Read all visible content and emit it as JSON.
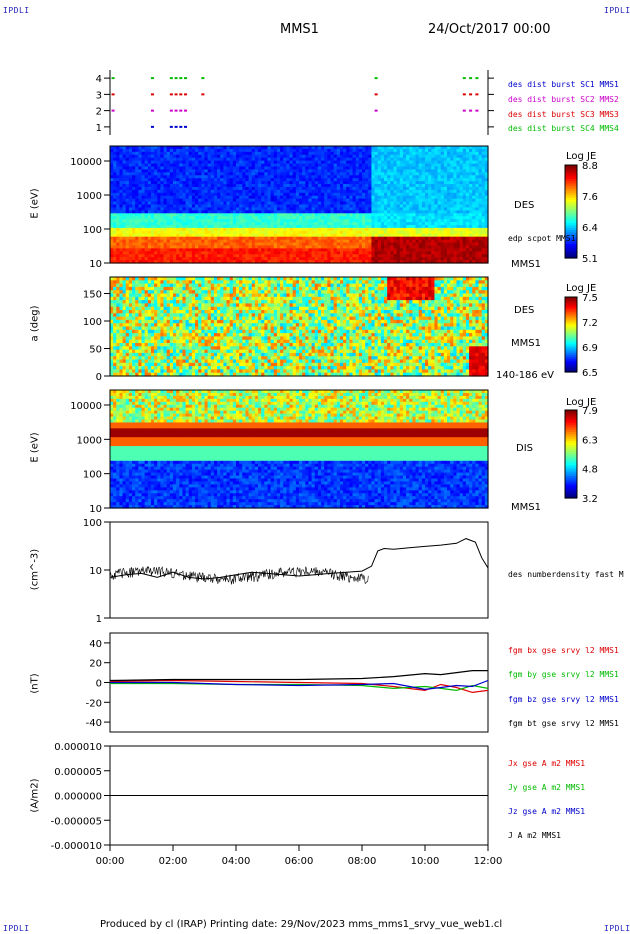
{
  "page": {
    "corner_label": "IPDLI",
    "spacecraft": "MMS1",
    "date": "24/Oct/2017 00:00",
    "footer": "Produced by cl (IRAP)   Printing date: 29/Nov/2023   mms_mms1_srvy_vue_web1.cl"
  },
  "chart_data": [
    {
      "type": "scatter",
      "panel": "burst",
      "yticks": [
        "4",
        "3",
        "2",
        "1"
      ],
      "xlim": [
        0,
        12
      ],
      "ylim": [
        0.5,
        4.5
      ],
      "series": [
        {
          "name": "des dist burst SC1 MMS1",
          "color": "#0000cc",
          "y": 1,
          "x": [
            1.3,
            1.9,
            2.05,
            2.2,
            2.35
          ]
        },
        {
          "name": "des dist burst SC2 MMS2",
          "color": "#cc00cc",
          "y": 2,
          "x": [
            0.05,
            1.3,
            1.9,
            2.05,
            2.2,
            2.35,
            8.4,
            11.2,
            11.4,
            11.6
          ]
        },
        {
          "name": "des dist burst SC3 MMS3",
          "color": "#dd0000",
          "y": 3,
          "x": [
            0.05,
            1.3,
            1.9,
            2.05,
            2.2,
            2.35,
            2.9,
            8.4,
            11.2,
            11.4,
            11.6
          ]
        },
        {
          "name": "des dist burst SC4 MMS4",
          "color": "#00bb00",
          "y": 4,
          "x": [
            0.05,
            1.3,
            1.9,
            2.05,
            2.2,
            2.35,
            2.9,
            8.4,
            11.2,
            11.4,
            11.6
          ]
        }
      ]
    },
    {
      "type": "heatmap",
      "panel": "des-energy",
      "ylabel": "E (eV)",
      "yscale": "log",
      "yticks": [
        "10000",
        "1000",
        "100",
        "10"
      ],
      "right_labels": [
        "DES",
        "edp scpot MMS1",
        "MMS1"
      ],
      "colorbar": {
        "title": "Log JE",
        "ticks": [
          "8.8",
          "7.6",
          "6.4",
          "5.1"
        ],
        "range": [
          5.1,
          8.8
        ]
      }
    },
    {
      "type": "heatmap",
      "panel": "des-pitch",
      "ylabel": "a (deg)",
      "yticks": [
        "150",
        "100",
        "50",
        "0"
      ],
      "ylim": [
        0,
        180
      ],
      "right_labels": [
        "DES",
        "MMS1",
        "140-186 eV"
      ],
      "colorbar": {
        "title": "Log JE",
        "ticks": [
          "7.5",
          "7.2",
          "6.9",
          "6.5"
        ],
        "range": [
          6.5,
          7.5
        ]
      }
    },
    {
      "type": "heatmap",
      "panel": "dis-energy",
      "ylabel": "E (eV)",
      "yscale": "log",
      "yticks": [
        "10000",
        "1000",
        "100",
        "10"
      ],
      "right_labels": [
        "DIS",
        "MMS1"
      ],
      "colorbar": {
        "title": "Log JE",
        "ticks": [
          "7.9",
          "6.3",
          "4.8",
          "3.2"
        ],
        "range": [
          3.2,
          7.9
        ]
      }
    },
    {
      "type": "line",
      "panel": "density",
      "ylabel": "(cm^-3)",
      "yscale": "log",
      "yticks": [
        "100",
        "10",
        "1"
      ],
      "ylim": [
        1,
        100
      ],
      "series": [
        {
          "name": "des numberdensity fast M",
          "color": "#000000",
          "x": [
            0,
            0.5,
            1,
            1.5,
            2,
            2.5,
            3,
            3.5,
            4,
            4.5,
            5,
            5.5,
            6,
            6.5,
            7,
            7.5,
            8,
            8.3,
            8.5,
            8.7,
            9,
            9.5,
            10,
            10.5,
            11,
            11.3,
            11.6,
            11.8,
            12
          ],
          "y": [
            7,
            8,
            8.5,
            7,
            9,
            7,
            6.5,
            7,
            8,
            9,
            8.5,
            8,
            7.5,
            8,
            8.5,
            9,
            9.5,
            12,
            25,
            28,
            27,
            29,
            31,
            33,
            36,
            45,
            38,
            18,
            11
          ]
        }
      ]
    },
    {
      "type": "line",
      "panel": "fgm",
      "ylabel": "(nT)",
      "yticks": [
        "40",
        "20",
        "0",
        "-20",
        "-40"
      ],
      "ylim": [
        -50,
        50
      ],
      "series": [
        {
          "name": "fgm bx gse srvy l2 MMS1",
          "color": "#dd0000",
          "x": [
            0,
            2,
            4,
            6,
            8,
            9,
            10,
            10.5,
            11,
            11.5,
            12
          ],
          "y": [
            1,
            2,
            1,
            0,
            -1,
            -4,
            -8,
            -2,
            -5,
            -10,
            -8
          ]
        },
        {
          "name": "fgm by gse srvy l2 MMS1",
          "color": "#00bb00",
          "x": [
            0,
            2,
            4,
            6,
            8,
            9,
            10,
            10.5,
            11,
            11.5,
            12
          ],
          "y": [
            -1,
            -1,
            -2,
            -2,
            -3,
            -6,
            -4,
            -6,
            -8,
            -3,
            -6
          ]
        },
        {
          "name": "fgm bz gse srvy l2 MMS1",
          "color": "#0000cc",
          "x": [
            0,
            2,
            4,
            6,
            8,
            9,
            10,
            10.5,
            11,
            11.5,
            12
          ],
          "y": [
            0,
            0,
            -2,
            -3,
            -2,
            -1,
            -7,
            -5,
            -3,
            -4,
            2
          ]
        },
        {
          "name": "fgm bt gse srvy l2 MMS1",
          "color": "#000000",
          "x": [
            0,
            2,
            4,
            6,
            8,
            9,
            10,
            10.5,
            11,
            11.5,
            12
          ],
          "y": [
            2,
            3,
            3,
            3,
            4,
            6,
            9,
            8,
            10,
            12,
            12
          ]
        }
      ]
    },
    {
      "type": "line",
      "panel": "current",
      "ylabel": "(A/m2)",
      "yticks": [
        "0.000010",
        "0.000005",
        "0.000000",
        "-0.000005",
        "-0.000010"
      ],
      "ylim": [
        -1e-05,
        1e-05
      ],
      "series": [
        {
          "name": "Jx gse A m2 MMS1",
          "color": "#dd0000",
          "x": [
            0,
            12
          ],
          "y": [
            0,
            0
          ]
        },
        {
          "name": "Jy gse A m2 MMS1",
          "color": "#00bb00",
          "x": [
            0,
            12
          ],
          "y": [
            0,
            0
          ]
        },
        {
          "name": "Jz gse A m2 MMS1",
          "color": "#0000cc",
          "x": [
            0,
            12
          ],
          "y": [
            0,
            0
          ]
        },
        {
          "name": "J A m2 MMS1",
          "color": "#000000",
          "x": [
            0,
            12
          ],
          "y": [
            0,
            0
          ]
        }
      ]
    }
  ],
  "xaxis": {
    "ticks": [
      "00:00",
      "02:00",
      "04:00",
      "06:00",
      "08:00",
      "10:00",
      "12:00"
    ],
    "xlim": [
      0,
      12
    ]
  }
}
